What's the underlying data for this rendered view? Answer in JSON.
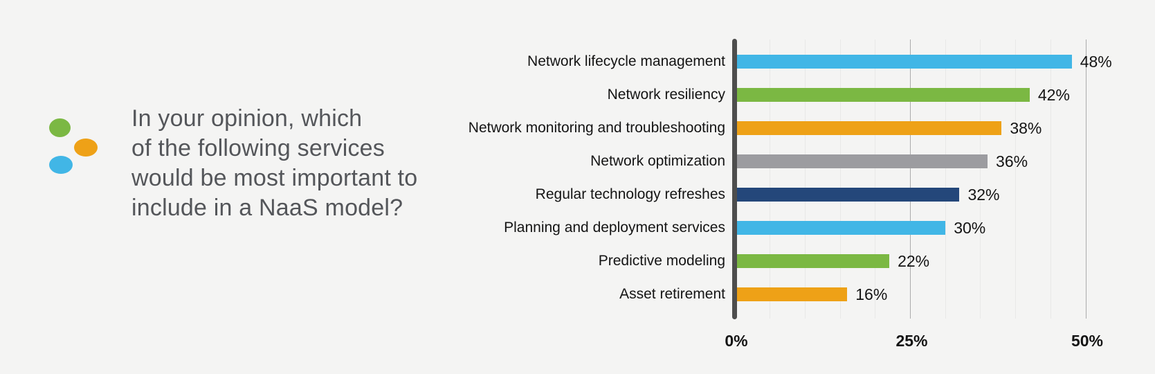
{
  "background_color": "#F4F4F3",
  "logo": {
    "dots": [
      {
        "name": "green-dot",
        "color": "#7BB843"
      },
      {
        "name": "orange-dot",
        "color": "#EEA117"
      },
      {
        "name": "blue-dot",
        "color": "#41B6E6"
      }
    ]
  },
  "question": {
    "lines": [
      "In your opinion, which",
      "of the following services",
      "would be most important to",
      "include in a NaaS model?"
    ],
    "text_color": "#54565A"
  },
  "chart_data": {
    "type": "bar",
    "orientation": "horizontal",
    "categories": [
      "Network lifecycle management",
      "Network resiliency",
      "Network monitoring and troubleshooting",
      "Network optimization",
      "Regular technology refreshes",
      "Planning and deployment services",
      "Predictive modeling",
      "Asset retirement"
    ],
    "values": [
      48,
      42,
      38,
      36,
      32,
      30,
      22,
      16
    ],
    "value_labels": [
      "48%",
      "42%",
      "38%",
      "36%",
      "32%",
      "30%",
      "22%",
      "16%"
    ],
    "bar_colors": [
      "#41B6E6",
      "#7BB843",
      "#EEA117",
      "#9C9CA0",
      "#24477A",
      "#41B6E6",
      "#7BB843",
      "#EEA117"
    ],
    "x_ticks": [
      {
        "label": "0%",
        "value": 0
      },
      {
        "label": "25%",
        "value": 25
      },
      {
        "label": "50%",
        "value": 50
      }
    ],
    "xlim": [
      0,
      58
    ],
    "grid": {
      "minor_step": 5,
      "minor_color": "#E8E8E7",
      "major_values": [
        25,
        50
      ],
      "major_color": "#ABABAB"
    },
    "axis_color": "#4D4D4D",
    "label_color": "#141414",
    "legend": "none",
    "title": ""
  }
}
